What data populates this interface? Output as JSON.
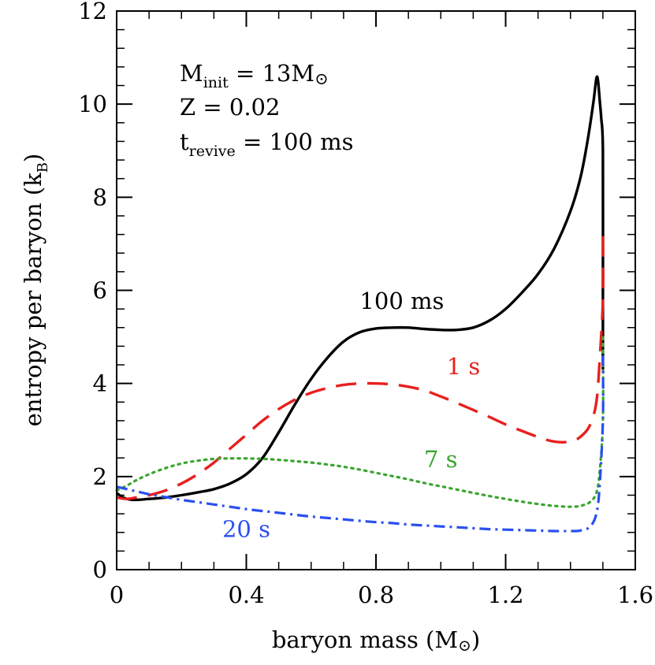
{
  "chart_data": {
    "type": "line",
    "title": "",
    "xlabel_text": "baryon mass (M",
    "xlabel_unit_symbol": "⊙",
    "xlabel_close": ")",
    "ylabel_text": "entropy per baryon (k",
    "ylabel_sub": "B",
    "ylabel_close": ")",
    "xlim": [
      0,
      1.6
    ],
    "ylim": [
      0,
      12
    ],
    "x_ticks": [
      {
        "value": 0,
        "label": "0"
      },
      {
        "value": 0.4,
        "label": "0.4"
      },
      {
        "value": 0.8,
        "label": "0.8"
      },
      {
        "value": 1.2,
        "label": "1.2"
      },
      {
        "value": 1.6,
        "label": "1.6"
      }
    ],
    "y_ticks": [
      {
        "value": 0,
        "label": "0"
      },
      {
        "value": 2,
        "label": "2"
      },
      {
        "value": 4,
        "label": "4"
      },
      {
        "value": 6,
        "label": "6"
      },
      {
        "value": 8,
        "label": "8"
      },
      {
        "value": 10,
        "label": "10"
      },
      {
        "value": 12,
        "label": "12"
      }
    ],
    "x_minor_step": 0.1,
    "y_minor_step": 0.4,
    "annotations": {
      "line1_main": "M",
      "line1_sub": "init",
      "line1_rest": " = 13M",
      "line1_symbol": "⊙",
      "line2": "Z = 0.02",
      "line3_main": "t",
      "line3_sub": "revive",
      "line3_rest": " = 100 ms"
    },
    "series": [
      {
        "name": "100 ms",
        "color": "#000000",
        "dash": "solid",
        "label_x": 0.88,
        "label_y": 5.6,
        "x": [
          0,
          0.02,
          0.05,
          0.1,
          0.15,
          0.2,
          0.25,
          0.3,
          0.35,
          0.4,
          0.45,
          0.5,
          0.55,
          0.6,
          0.65,
          0.7,
          0.75,
          0.8,
          0.85,
          0.9,
          0.95,
          1.0,
          1.05,
          1.1,
          1.15,
          1.2,
          1.25,
          1.3,
          1.35,
          1.4,
          1.43,
          1.45,
          1.47,
          1.48,
          1.485,
          1.49,
          1.495,
          1.5,
          1.5,
          1.5
        ],
        "y": [
          1.65,
          1.55,
          1.5,
          1.52,
          1.55,
          1.6,
          1.66,
          1.73,
          1.85,
          2.05,
          2.4,
          2.95,
          3.55,
          4.1,
          4.55,
          4.9,
          5.1,
          5.18,
          5.2,
          5.2,
          5.17,
          5.15,
          5.15,
          5.2,
          5.35,
          5.6,
          5.95,
          6.35,
          6.9,
          7.7,
          8.4,
          9.1,
          10.0,
          10.55,
          10.5,
          10.1,
          9.7,
          9.0,
          6.0,
          4.3
        ]
      },
      {
        "name": "1 s",
        "color": "#e8201e",
        "dash": "long-dash",
        "label_x": 1.07,
        "label_y": 4.2,
        "x": [
          0,
          0.03,
          0.06,
          0.1,
          0.15,
          0.2,
          0.25,
          0.3,
          0.35,
          0.4,
          0.45,
          0.5,
          0.55,
          0.6,
          0.65,
          0.7,
          0.75,
          0.8,
          0.85,
          0.9,
          0.95,
          1.0,
          1.05,
          1.1,
          1.15,
          1.2,
          1.25,
          1.3,
          1.35,
          1.4,
          1.43,
          1.46,
          1.48,
          1.49,
          1.5,
          1.5
        ],
        "y": [
          1.55,
          1.52,
          1.55,
          1.6,
          1.7,
          1.85,
          2.05,
          2.3,
          2.6,
          2.9,
          3.2,
          3.45,
          3.65,
          3.8,
          3.9,
          3.97,
          4.0,
          4.0,
          3.98,
          3.93,
          3.85,
          3.72,
          3.58,
          3.43,
          3.28,
          3.12,
          2.98,
          2.85,
          2.75,
          2.75,
          2.85,
          3.1,
          3.6,
          4.5,
          5.8,
          7.2
        ]
      },
      {
        "name": "7 s",
        "color": "#3aa530",
        "dash": "dotted",
        "label_x": 1.0,
        "label_y": 2.2,
        "x": [
          0,
          0.03,
          0.06,
          0.1,
          0.15,
          0.2,
          0.25,
          0.3,
          0.35,
          0.4,
          0.45,
          0.5,
          0.55,
          0.6,
          0.65,
          0.7,
          0.75,
          0.8,
          0.85,
          0.9,
          0.95,
          1.0,
          1.05,
          1.1,
          1.15,
          1.2,
          1.25,
          1.3,
          1.35,
          1.4,
          1.43,
          1.46,
          1.48,
          1.49,
          1.5,
          1.5
        ],
        "y": [
          1.7,
          1.8,
          1.92,
          2.05,
          2.18,
          2.28,
          2.34,
          2.38,
          2.39,
          2.39,
          2.38,
          2.36,
          2.33,
          2.3,
          2.26,
          2.21,
          2.15,
          2.08,
          2.01,
          1.94,
          1.86,
          1.79,
          1.72,
          1.65,
          1.58,
          1.52,
          1.46,
          1.41,
          1.37,
          1.35,
          1.37,
          1.45,
          1.65,
          2.1,
          3.2,
          5.0
        ]
      },
      {
        "name": "20 s",
        "color": "#2a4ff0",
        "dash": "dash-dot",
        "label_x": 0.4,
        "label_y": 0.7,
        "x": [
          0,
          0.05,
          0.1,
          0.15,
          0.2,
          0.25,
          0.3,
          0.35,
          0.4,
          0.45,
          0.5,
          0.55,
          0.6,
          0.65,
          0.7,
          0.75,
          0.8,
          0.85,
          0.9,
          0.95,
          1.0,
          1.05,
          1.1,
          1.15,
          1.2,
          1.25,
          1.3,
          1.35,
          1.4,
          1.43,
          1.46,
          1.48,
          1.49,
          1.5,
          1.5
        ],
        "y": [
          1.78,
          1.7,
          1.62,
          1.56,
          1.5,
          1.45,
          1.4,
          1.35,
          1.3,
          1.26,
          1.22,
          1.18,
          1.14,
          1.11,
          1.08,
          1.05,
          1.02,
          1.0,
          0.97,
          0.95,
          0.93,
          0.91,
          0.89,
          0.87,
          0.86,
          0.85,
          0.84,
          0.83,
          0.83,
          0.84,
          0.92,
          1.2,
          1.8,
          3.2,
          4.6
        ]
      }
    ]
  }
}
